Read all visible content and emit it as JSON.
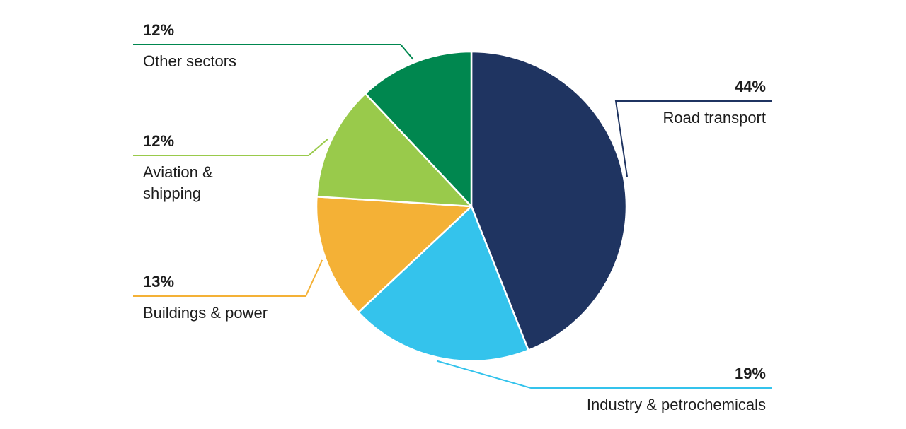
{
  "chart_data": {
    "type": "pie",
    "slices": [
      {
        "name": "Road transport",
        "value": 44,
        "value_label": "44%",
        "label_lines": [
          "Road transport"
        ],
        "color": "#1F3461"
      },
      {
        "name": "Industry & petrochemicals",
        "value": 19,
        "value_label": "19%",
        "label_lines": [
          "Industry & petrochemicals"
        ],
        "color": "#34C3EC"
      },
      {
        "name": "Buildings & power",
        "value": 13,
        "value_label": "13%",
        "label_lines": [
          "Buildings & power"
        ],
        "color": "#F4B136"
      },
      {
        "name": "Aviation & shipping",
        "value": 12,
        "value_label": "12%",
        "label_lines": [
          "Aviation &",
          "shipping"
        ],
        "color": "#99CA4B"
      },
      {
        "name": "Other sectors",
        "value": 12,
        "value_label": "12%",
        "label_lines": [
          "Other sectors"
        ],
        "color": "#00874F"
      }
    ]
  }
}
